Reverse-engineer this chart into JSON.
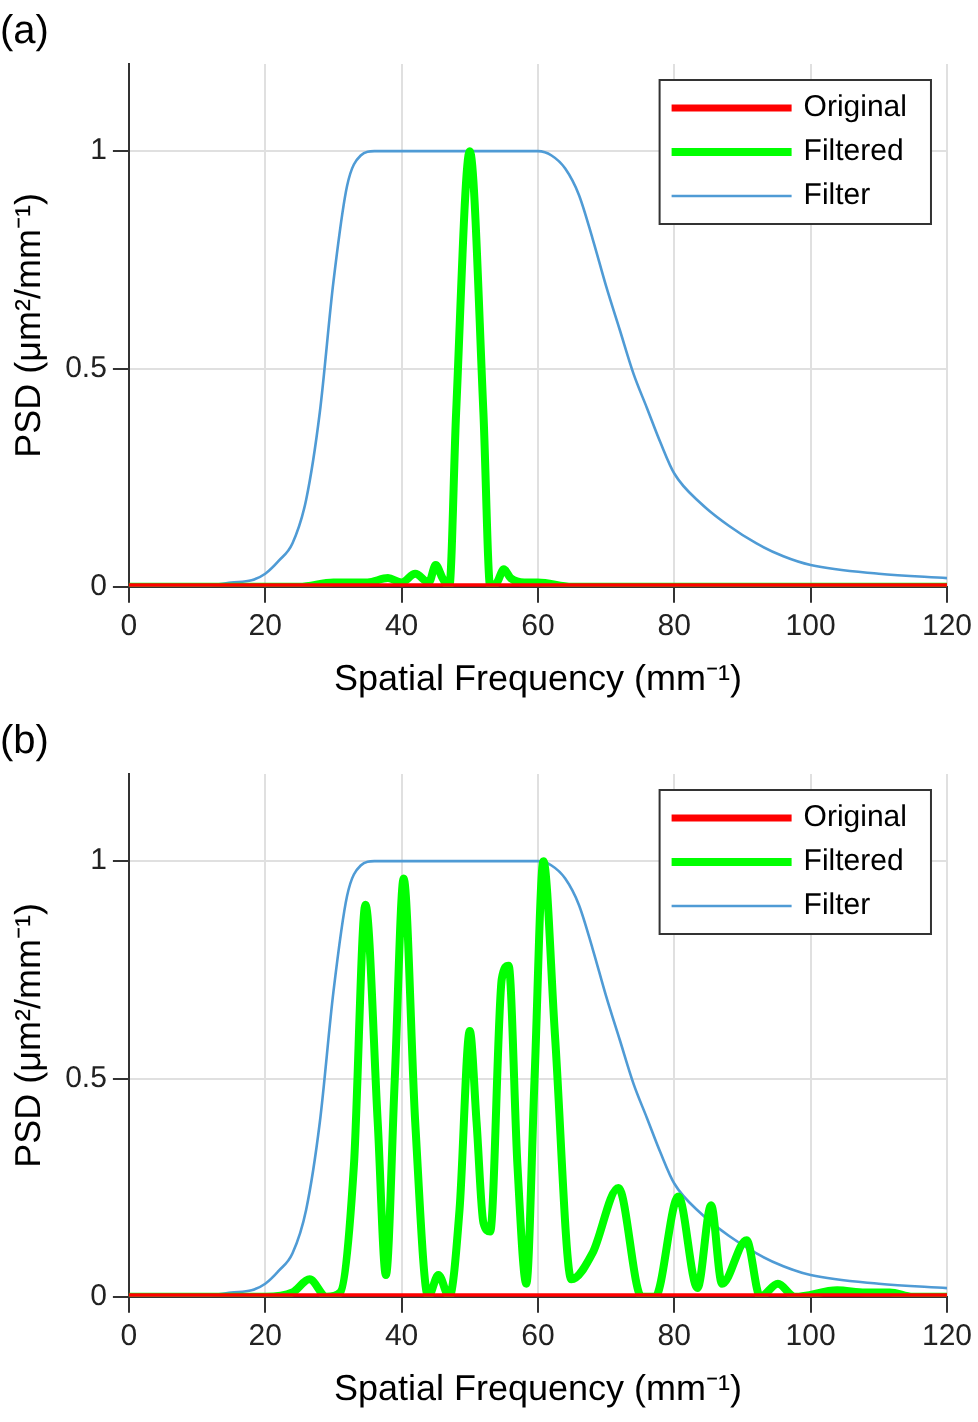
{
  "chart_data": [
    {
      "type": "line",
      "title": "(a)",
      "xlabel": "Spatial Frequency (mm⁻¹)",
      "ylabel": "PSD (μm²/mm⁻¹)",
      "xlim": [
        0,
        120
      ],
      "xticks": [
        0,
        20,
        40,
        60,
        80,
        100,
        120
      ],
      "ylim": [
        0,
        1.2
      ],
      "yticks": [
        0,
        0.5,
        1
      ],
      "grid": true,
      "legend": "top right",
      "series": [
        {
          "name": "Original",
          "color": "#ff0000",
          "x": [
            0,
            120
          ],
          "values": [
            0,
            0
          ]
        },
        {
          "name": "Filtered",
          "color": "#00ff00",
          "x": [
            0,
            25,
            30,
            35,
            38,
            40,
            42,
            44,
            45,
            46,
            47,
            48,
            50,
            52,
            53,
            54,
            55,
            56,
            58,
            60,
            65,
            70,
            120
          ],
          "values": [
            0,
            0,
            0.01,
            0.01,
            0.02,
            0.01,
            0.03,
            0.01,
            0.05,
            0.02,
            0,
            0.4,
            1,
            0.4,
            0,
            0.01,
            0.04,
            0.02,
            0.01,
            0.01,
            0,
            0,
            0
          ]
        },
        {
          "name": "Filter",
          "color": "#4f9bd5",
          "x": [
            0,
            10,
            15,
            18,
            20,
            22,
            24,
            26,
            28,
            30,
            32,
            34,
            36,
            40,
            50,
            60,
            62,
            64,
            66,
            68,
            70,
            72,
            74,
            76,
            78,
            80,
            84,
            88,
            92,
            96,
            100,
            110,
            120
          ],
          "values": [
            0,
            0,
            0.01,
            0.015,
            0.03,
            0.06,
            0.1,
            0.2,
            0.4,
            0.7,
            0.92,
            0.99,
            1,
            1,
            1,
            1,
            0.99,
            0.96,
            0.9,
            0.8,
            0.69,
            0.59,
            0.49,
            0.41,
            0.33,
            0.26,
            0.19,
            0.14,
            0.1,
            0.07,
            0.05,
            0.03,
            0.02
          ]
        }
      ]
    },
    {
      "type": "line",
      "title": "(b)",
      "xlabel": "Spatial Frequency (mm⁻¹)",
      "ylabel": "PSD (μm²/mm⁻¹)",
      "xlim": [
        0,
        120
      ],
      "xticks": [
        0,
        20,
        40,
        60,
        80,
        100,
        120
      ],
      "ylim": [
        0,
        1.2
      ],
      "yticks": [
        0,
        0.5,
        1
      ],
      "grid": true,
      "legend": "top right",
      "series": [
        {
          "name": "Original",
          "color": "#ff0000",
          "x": [
            0,
            120
          ],
          "values": [
            0,
            0
          ]
        },
        {
          "name": "Filtered",
          "color": "#00ff00",
          "x": [
            0,
            20,
            24,
            26.5,
            29,
            31,
            33,
            34.7,
            36.5,
            37.7,
            39,
            40.3,
            42,
            43.9,
            45.4,
            47,
            48.5,
            50,
            51,
            52,
            53,
            54.7,
            55.7,
            57,
            58.3,
            59.5,
            60.8,
            62.5,
            64.9,
            68,
            71.8,
            75.2,
            77.2,
            80.6,
            83.4,
            85.4,
            87,
            90.6,
            92.6,
            95.2,
            97.7,
            103.9,
            108,
            111.6,
            115,
            120
          ],
          "values": [
            0,
            0,
            0.01,
            0.04,
            0,
            0.01,
            0.3,
            0.9,
            0.4,
            0.05,
            0.5,
            0.96,
            0.4,
            0,
            0.05,
            0,
            0.2,
            0.61,
            0.4,
            0.17,
            0.15,
            0.73,
            0.76,
            0.3,
            0.03,
            0.5,
            1,
            0.6,
            0.04,
            0.1,
            0.25,
            0,
            0,
            0.23,
            0.02,
            0.21,
            0.03,
            0.13,
            0,
            0.03,
            0,
            0.015,
            0.01,
            0.01,
            0,
            0
          ]
        },
        {
          "name": "Filter",
          "color": "#4f9bd5",
          "x": [
            0,
            10,
            15,
            18,
            20,
            22,
            24,
            26,
            28,
            30,
            32,
            34,
            36,
            40,
            50,
            60,
            62,
            64,
            66,
            68,
            70,
            72,
            74,
            76,
            78,
            80,
            84,
            88,
            92,
            96,
            100,
            110,
            120
          ],
          "values": [
            0,
            0,
            0.01,
            0.015,
            0.03,
            0.06,
            0.1,
            0.2,
            0.4,
            0.7,
            0.92,
            0.99,
            1,
            1,
            1,
            1,
            0.99,
            0.96,
            0.9,
            0.8,
            0.69,
            0.59,
            0.49,
            0.41,
            0.33,
            0.26,
            0.19,
            0.14,
            0.1,
            0.07,
            0.05,
            0.03,
            0.02
          ]
        }
      ]
    }
  ]
}
